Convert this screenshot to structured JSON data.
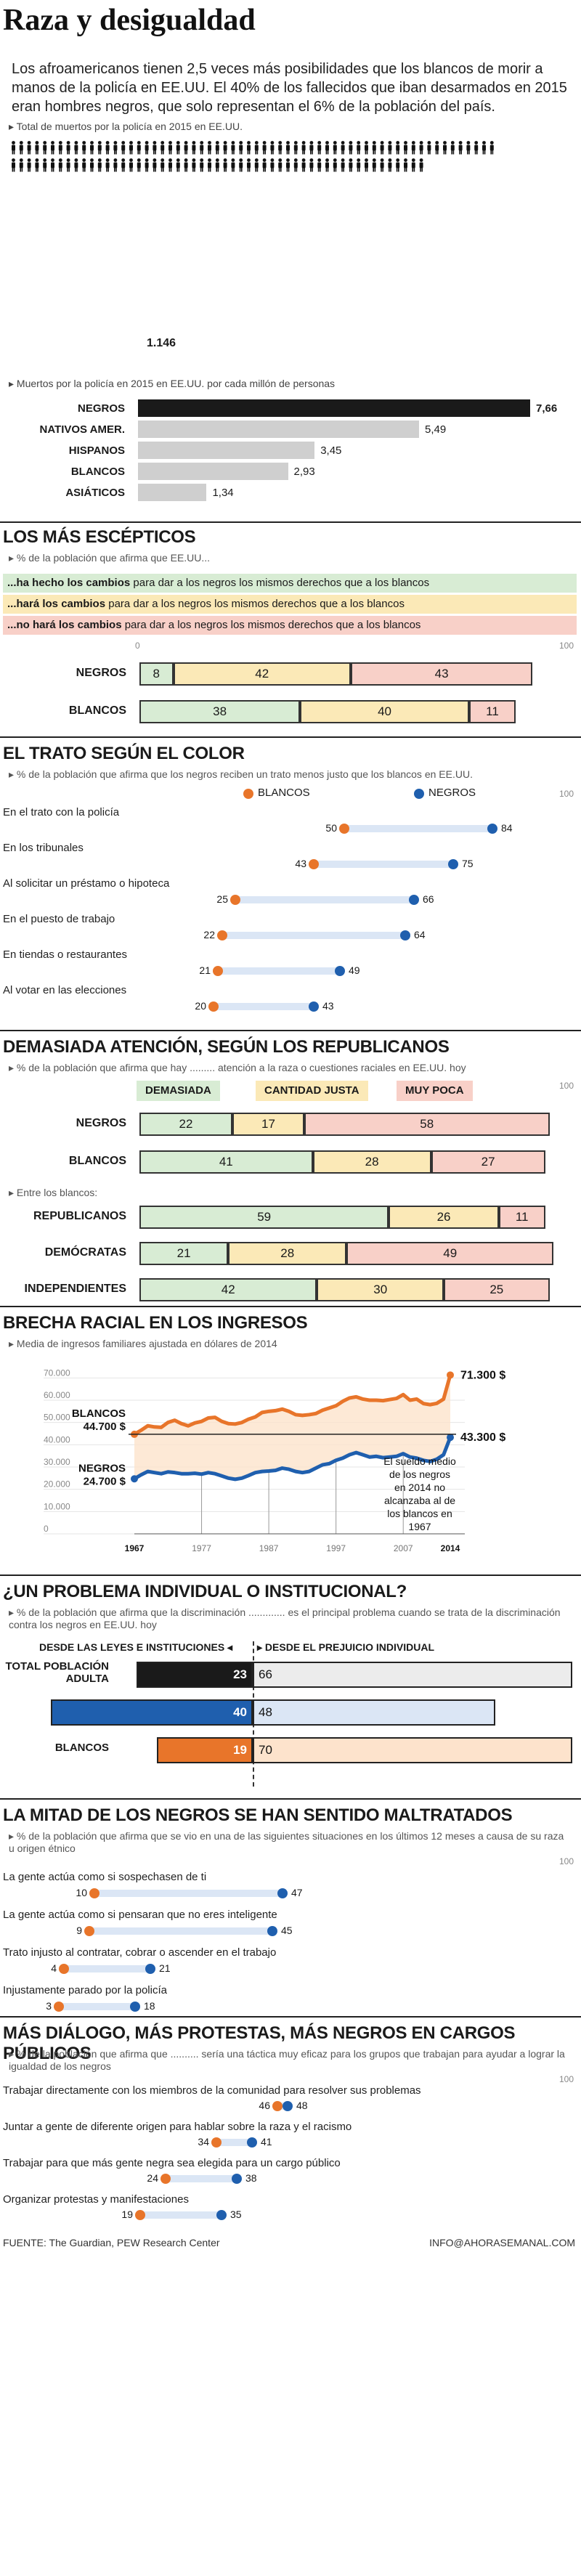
{
  "header": {
    "title": "Raza y desigualdad",
    "intro": "Los afroamericanos tienen 2,5 veces más posibilidades que los blancos de morir a manos de la policía en EE.UU. El 40% de los fallecidos que iban desarmados en 2015 eran hombres negros, que solo representan el 6% de la población del país."
  },
  "deaths": {
    "caption": "Total de muertos por la policía en 2015 en EE.UU.",
    "total": 1146,
    "total_label": "1.146"
  },
  "per_million": {
    "caption": "Muertos por la policía en 2015 en EE.UU. por cada millón de personas",
    "rows": [
      {
        "label": "NEGROS",
        "value": 7.66,
        "value_label": "7,66"
      },
      {
        "label": "NATIVOS AMER.",
        "value": 5.49,
        "value_label": "5,49"
      },
      {
        "label": "HISPANOS",
        "value": 3.45,
        "value_label": "3,45"
      },
      {
        "label": "BLANCOS",
        "value": 2.93,
        "value_label": "2,93"
      },
      {
        "label": "ASIÁTICOS",
        "value": 1.34,
        "value_label": "1,34"
      }
    ],
    "colors": {
      "first": "#1a1a1a",
      "rest": "#cfcfcf"
    }
  },
  "sceptics": {
    "title": "LOS MÁS ESCÉPTICOS",
    "subtitle": "% de la población que afirma que EE.UU...",
    "legend": [
      {
        "bold": "...ha hecho los cambios",
        "rest": " para dar a los negros los mismos derechos que a los blancos",
        "color": "#d8ecd4"
      },
      {
        "bold": "...hará los cambios",
        "rest": " para dar a los negros los mismos derechos que a los blancos",
        "color": "#fbe9b7"
      },
      {
        "bold": "...no hará los cambios",
        "rest": " para dar a los negros los mismos derechos que a los blancos",
        "color": "#f8d0c8"
      }
    ],
    "axis": {
      "min": "0",
      "max": "100"
    },
    "rows": [
      {
        "label": "NEGROS",
        "values": [
          8,
          42,
          43
        ]
      },
      {
        "label": "BLANCOS",
        "values": [
          38,
          40,
          11
        ]
      }
    ]
  },
  "treatment": {
    "title": "EL TRATO SEGÚN EL COLOR",
    "subtitle": "% de la población que afirma que los negros reciben un trato menos justo que los blancos en EE.UU.",
    "legend": {
      "blancos": "BLANCOS",
      "negros": "NEGROS"
    },
    "axis_max": "100",
    "rows": [
      {
        "label": "En el trato con la policía",
        "blancos": 50,
        "negros": 84
      },
      {
        "label": "En los tribunales",
        "blancos": 43,
        "negros": 75
      },
      {
        "label": "Al solicitar un préstamo o hipoteca",
        "blancos": 25,
        "negros": 66
      },
      {
        "label": "En el puesto de trabajo",
        "blancos": 22,
        "negros": 64
      },
      {
        "label": "En tiendas o restaurantes",
        "blancos": 21,
        "negros": 49
      },
      {
        "label": "Al votar en las elecciones",
        "blancos": 20,
        "negros": 43
      }
    ]
  },
  "attention": {
    "title": "DEMASIADA ATENCIÓN, SEGÚN LOS REPUBLICANOS",
    "subtitle": "% de la población que afirma que hay ......... atención a la raza o cuestiones raciales en EE.UU. hoy",
    "legend": [
      {
        "label": "DEMASIADA",
        "color": "#d8ecd4"
      },
      {
        "label": "CANTIDAD JUSTA",
        "color": "#fbe9b7"
      },
      {
        "label": "MUY POCA",
        "color": "#f8d0c8"
      }
    ],
    "axis_max": "100",
    "rows": [
      {
        "label": "NEGROS",
        "values": [
          22,
          17,
          58
        ]
      },
      {
        "label": "BLANCOS",
        "values": [
          41,
          28,
          27
        ]
      }
    ],
    "among_whites": "Entre los blancos:",
    "rows2": [
      {
        "label": "REPUBLICANOS",
        "values": [
          59,
          26,
          11
        ]
      },
      {
        "label": "DEMÓCRATAS",
        "values": [
          21,
          28,
          49
        ]
      },
      {
        "label": "INDEPENDIENTES",
        "values": [
          42,
          30,
          25
        ]
      }
    ]
  },
  "income": {
    "title": "BRECHA RACIAL EN LOS INGRESOS",
    "subtitle": "Media de ingresos familiares ajustada en dólares de 2014",
    "yticks": [
      "70.000",
      "60.000",
      "50.000",
      "40.000",
      "30.000",
      "20.000",
      "10.000",
      "0"
    ],
    "xticks": [
      "1967",
      "1977",
      "1987",
      "1997",
      "2007",
      "2014"
    ],
    "labels": {
      "blancos_start": "BLANCOS",
      "blancos_start_val": "44.700 $",
      "negros_start": "NEGROS",
      "negros_start_val": "24.700 $",
      "blancos_end": "71.300 $",
      "negros_end": "43.300 $",
      "note": "El sueldo medio de los negros en 2014 no alcanzaba al de los blancos en 1967"
    }
  },
  "chart_data": {
    "type": "line",
    "title": "BRECHA RACIAL EN LOS INGRESOS",
    "ylabel": "Media de ingresos familiares ajustada en dólares de 2014",
    "ylim": [
      0,
      75000
    ],
    "x": [
      1967,
      1968,
      1969,
      1970,
      1971,
      1972,
      1973,
      1974,
      1975,
      1976,
      1977,
      1978,
      1979,
      1980,
      1981,
      1982,
      1983,
      1984,
      1985,
      1986,
      1987,
      1988,
      1989,
      1990,
      1991,
      1992,
      1993,
      1994,
      1995,
      1996,
      1997,
      1998,
      1999,
      2000,
      2001,
      2002,
      2003,
      2004,
      2005,
      2006,
      2007,
      2008,
      2009,
      2010,
      2011,
      2012,
      2013,
      2014
    ],
    "series": [
      {
        "name": "BLANCOS",
        "color": "#e8752a",
        "values": [
          44700,
          46500,
          48500,
          48000,
          47800,
          50000,
          51000,
          49500,
          48500,
          49800,
          50500,
          52000,
          52300,
          50500,
          49500,
          49300,
          50000,
          51500,
          52500,
          54500,
          55000,
          55300,
          56000,
          55000,
          53500,
          53200,
          53500,
          54000,
          55500,
          56500,
          57500,
          59500,
          61000,
          61500,
          60500,
          60000,
          60000,
          59800,
          60300,
          60800,
          62500,
          60000,
          60500,
          58500,
          58000,
          58600,
          60500,
          71300
        ]
      },
      {
        "name": "NEGROS",
        "color": "#1f5fae",
        "values": [
          24700,
          26500,
          28000,
          27500,
          27000,
          27800,
          27500,
          27000,
          27000,
          27200,
          26800,
          27500,
          27000,
          26000,
          25000,
          24500,
          25000,
          26200,
          27500,
          28000,
          28200,
          28500,
          29500,
          29000,
          28000,
          27500,
          28000,
          29500,
          31000,
          31500,
          33000,
          34000,
          35500,
          36500,
          35500,
          34500,
          34800,
          34200,
          34500,
          34800,
          36000,
          34500,
          34000,
          33000,
          32500,
          33500,
          35500,
          43300
        ]
      }
    ]
  },
  "institutional": {
    "title": "¿UN PROBLEMA INDIVIDUAL O INSTITUCIONAL?",
    "subtitle": "% de la población que afirma que la discriminación ............. es el principal problema cuando se trata de la discriminación contra los negros en EE.UU. hoy",
    "left_header": "DESDE LAS LEYES E INSTITUCIONES",
    "right_header": "DESDE EL PREJUICIO INDIVIDUAL",
    "rows": [
      {
        "label": "TOTAL POBLACIÓN ADULTA",
        "left": 23,
        "right": 66,
        "left_color": "#1a1a1a",
        "right_color": "#ececec"
      },
      {
        "label": "NEGROS",
        "left": 40,
        "right": 48,
        "left_color": "#1f5fae",
        "right_color": "#dbe6f5"
      },
      {
        "label": "BLANCOS",
        "left": 19,
        "right": 70,
        "left_color": "#e8752a",
        "right_color": "#fde3cc"
      }
    ]
  },
  "mistreated": {
    "title": "LA MITAD DE LOS NEGROS SE HAN SENTIDO MALTRATADOS",
    "subtitle": "% de la población que afirma que se vio en una de las siguientes situaciones en los últimos 12 meses a causa de su raza u origen étnico",
    "axis_max": "100",
    "rows": [
      {
        "label": "La gente actúa como si sospechasen de ti",
        "blancos": 10,
        "negros": 47
      },
      {
        "label": "La gente actúa como si pensaran que no eres inteligente",
        "blancos": 9,
        "negros": 45
      },
      {
        "label": "Trato injusto al contratar, cobrar o ascender en el trabajo",
        "blancos": 4,
        "negros": 21
      },
      {
        "label": "Injustamente parado por la policía",
        "blancos": 3,
        "negros": 18
      }
    ]
  },
  "dialogue": {
    "title": "MÁS DIÁLOGO, MÁS PROTESTAS, MÁS NEGROS EN CARGOS PÚBLICOS",
    "subtitle": "% de la población que afirma que .......... sería una táctica muy eficaz para los grupos que trabajan para ayudar a lograr la igualdad de los negros",
    "axis_max": "100",
    "rows": [
      {
        "label": "Trabajar directamente con los miembros de la comunidad para resolver sus problemas",
        "blancos": 46,
        "negros": 48
      },
      {
        "label": "Juntar a gente de diferente origen para hablar sobre la raza y el racismo",
        "blancos": 34,
        "negros": 41
      },
      {
        "label": "Trabajar para que más gente negra sea elegida para un cargo público",
        "blancos": 24,
        "negros": 38
      },
      {
        "label": "Organizar protestas y manifestaciones",
        "blancos": 19,
        "negros": 35
      }
    ]
  },
  "footer": {
    "source": "FUENTE: The Guardian, PEW Research Center",
    "credit": "INFO@AHORASEMANAL.COM"
  },
  "colors": {
    "blancos": "#e8752a",
    "negros": "#1f5fae",
    "range_light": "#dbe6f5"
  }
}
